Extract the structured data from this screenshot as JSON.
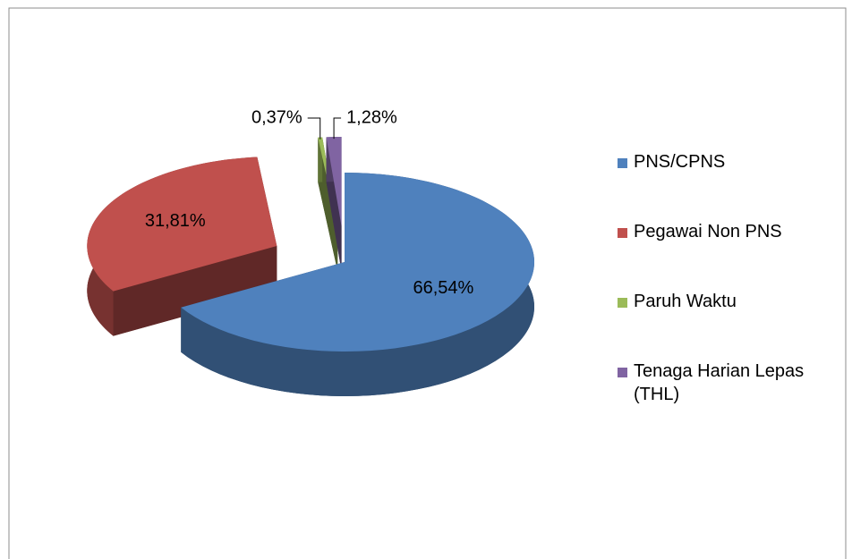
{
  "chart_data": {
    "type": "pie3d",
    "categories": [
      "PNS/CPNS",
      "Pegawai Non PNS",
      "Paruh Waktu",
      "Tenaga Harian Lepas (THL)"
    ],
    "values": [
      66.54,
      31.81,
      0.37,
      1.28
    ],
    "value_labels": [
      "66,54%",
      "31,81%",
      "0,37%",
      "1,28%"
    ],
    "colors": [
      "#4f81bd",
      "#c0504d",
      "#9bbb59",
      "#8064a2"
    ],
    "legend": "right"
  }
}
